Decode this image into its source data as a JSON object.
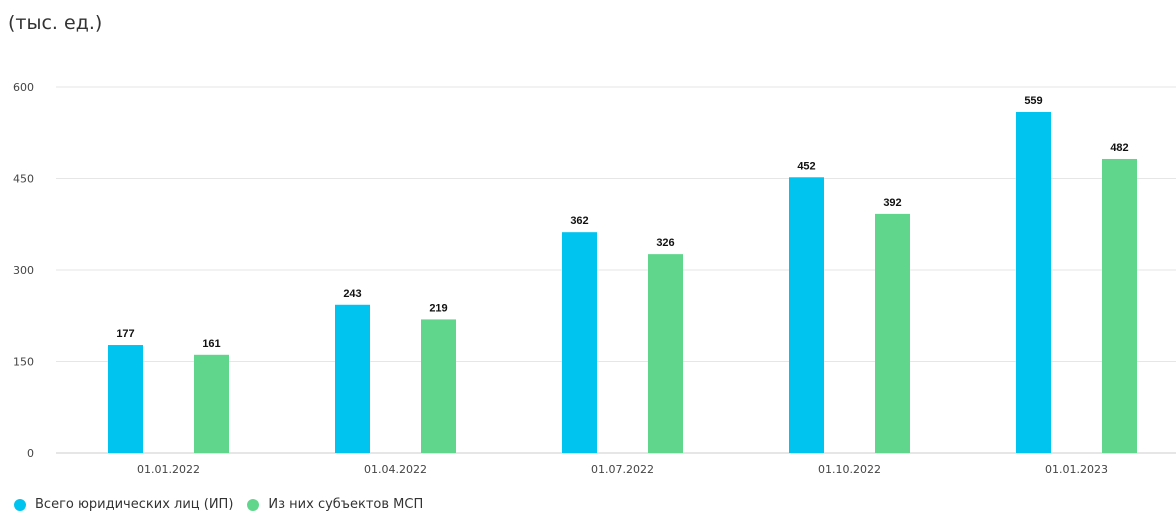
{
  "unit_label": "(тыс. ед.)",
  "colors": {
    "series_1": "#00c4f0",
    "series_2": "#5fd68b",
    "grid": "#e6e6e6",
    "axis": "#cccccc"
  },
  "chart_data": {
    "type": "bar",
    "categories": [
      "01.01.2022",
      "01.04.2022",
      "01.07.2022",
      "01.10.2022",
      "01.01.2023"
    ],
    "series": [
      {
        "name": "Всего юридических лиц (ИП)",
        "values": [
          177,
          243,
          362,
          452,
          559
        ]
      },
      {
        "name": "Из них субъектов МСП",
        "values": [
          161,
          219,
          326,
          392,
          482
        ]
      }
    ],
    "yticks": [
      0,
      150,
      300,
      450,
      600
    ],
    "ylim": [
      0,
      600
    ],
    "grid": true,
    "legend_position": "bottom-left",
    "data_labels": true
  }
}
